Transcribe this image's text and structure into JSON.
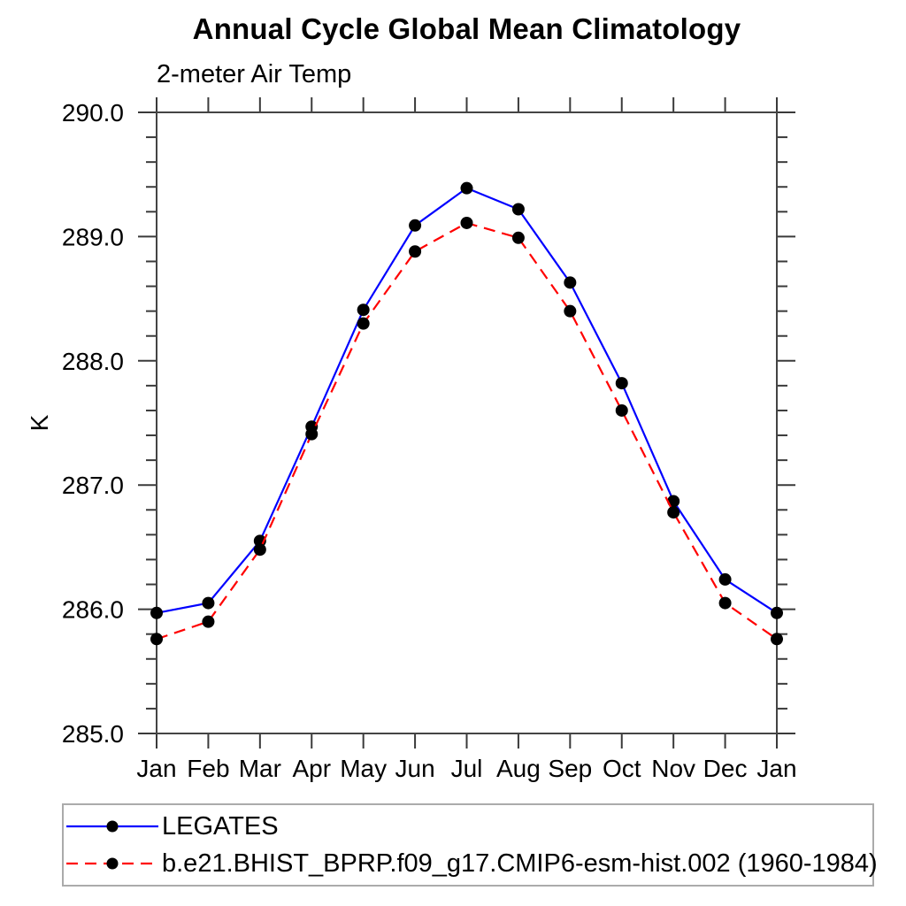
{
  "header": {
    "title": "Annual Cycle Global Mean Climatology",
    "subtitle": "2-meter Air Temp"
  },
  "chart_data": {
    "type": "line",
    "title": "Annual Cycle Global Mean Climatology",
    "subtitle": "2-meter Air Temp",
    "xlabel": "",
    "ylabel": "K",
    "x_tick_labels": [
      "Jan",
      "Feb",
      "Mar",
      "Apr",
      "May",
      "Jun",
      "Jul",
      "Aug",
      "Sep",
      "Oct",
      "Nov",
      "Dec",
      "Jan"
    ],
    "ylim": [
      285.0,
      290.0
    ],
    "y_major_ticks": [
      285.0,
      286.0,
      287.0,
      288.0,
      289.0,
      290.0
    ],
    "y_minor_step": 0.2,
    "grid": false,
    "legend_position": "bottom-left-box",
    "series": [
      {
        "name": "LEGATES",
        "color": "#0000ff",
        "style": "solid",
        "marker": "filled-circle",
        "marker_color": "#000000",
        "values": [
          285.97,
          286.05,
          286.55,
          287.47,
          288.41,
          289.09,
          289.39,
          289.22,
          288.63,
          287.82,
          286.87,
          286.24,
          285.97
        ]
      },
      {
        "name": "b.e21.BHIST_BPRP.f09_g17.CMIP6-esm-hist.002 (1960-1984)",
        "color": "#ff0000",
        "style": "dashed",
        "marker": "filled-circle",
        "marker_color": "#000000",
        "values": [
          285.76,
          285.9,
          286.48,
          287.41,
          288.3,
          288.88,
          289.11,
          288.99,
          288.4,
          287.6,
          286.78,
          286.05,
          285.76
        ]
      }
    ],
    "colors": {
      "axis": "#444444",
      "tick": "#3a3a3a",
      "text": "#000000",
      "legend_border": "#ababab",
      "background": "#ffffff"
    }
  }
}
